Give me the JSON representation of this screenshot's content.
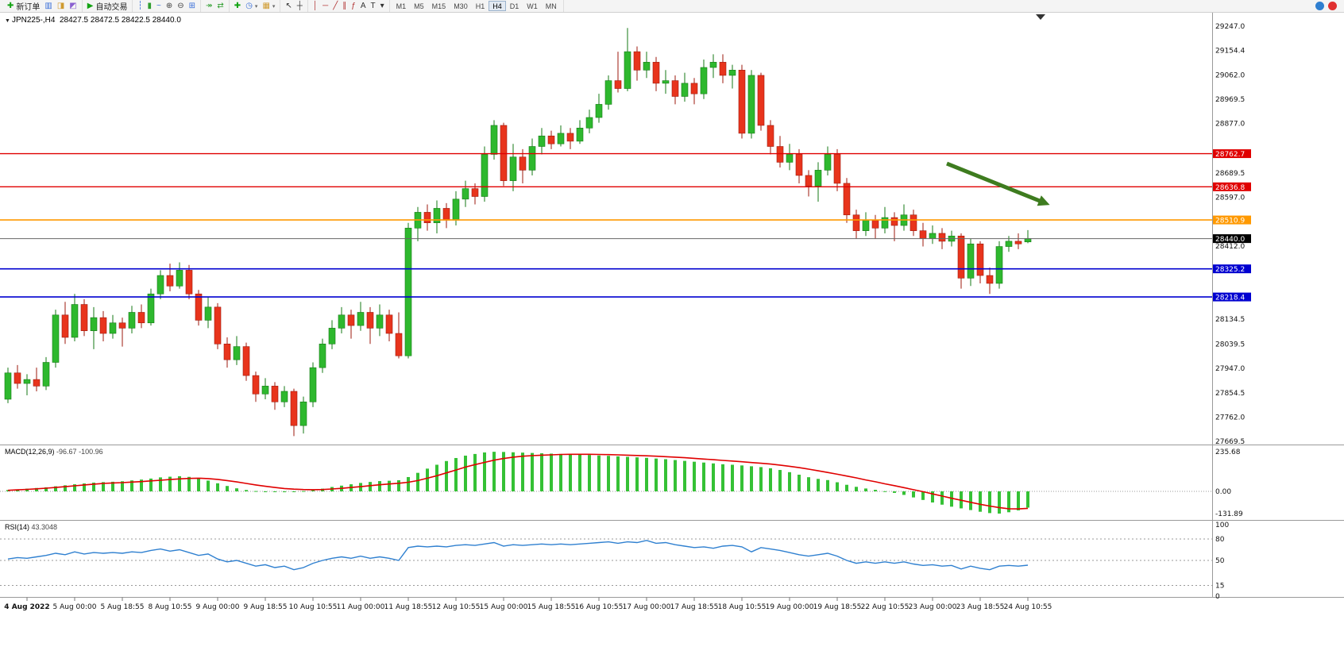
{
  "toolbar": {
    "left_groups": [
      {
        "name": "order-group",
        "items": [
          {
            "name": "new-order-button",
            "glyph": "✚",
            "glyph_color": "#12a312",
            "label": "新订单"
          },
          {
            "name": "market-depth-button",
            "glyph": "▥",
            "glyph_color": "#3a6fd8"
          },
          {
            "name": "new-chart-button",
            "glyph": "◨",
            "glyph_color": "#cf9a2f"
          },
          {
            "name": "profiles-button",
            "glyph": "◩",
            "glyph_color": "#8a5fd0"
          }
        ]
      },
      {
        "name": "algo-group",
        "items": [
          {
            "name": "algo-trading-button",
            "glyph": "▶",
            "glyph_color": "#12a312",
            "label": "自动交易"
          }
        ]
      },
      {
        "name": "chart-type-group",
        "items": [
          {
            "name": "bars-chart-button",
            "glyph": "┆",
            "glyph_color": "#3a6fd8"
          },
          {
            "name": "candles-chart-button",
            "glyph": "▮",
            "glyph_color": "#2f9e2f"
          },
          {
            "name": "line-chart-button",
            "glyph": "~",
            "glyph_color": "#3a6fd8"
          },
          {
            "name": "zoom-in-button",
            "glyph": "⊕",
            "glyph_color": "#444444"
          },
          {
            "name": "zoom-out-button",
            "glyph": "⊖",
            "glyph_color": "#444444"
          },
          {
            "name": "tile-windows-button",
            "glyph": "⊞",
            "glyph_color": "#3a6fd8"
          }
        ]
      },
      {
        "name": "scroll-group",
        "items": [
          {
            "name": "auto-scroll-button",
            "glyph": "↠",
            "glyph_color": "#2f9e2f"
          },
          {
            "name": "chart-shift-button",
            "glyph": "⇄",
            "glyph_color": "#2f9e2f"
          }
        ]
      },
      {
        "name": "insert-group",
        "items": [
          {
            "name": "indicators-button",
            "glyph": "✚",
            "glyph_color": "#12a312"
          },
          {
            "name": "periods-button",
            "glyph": "◷",
            "glyph_color": "#3a6fd8",
            "dropdown": true
          },
          {
            "name": "templates-button",
            "glyph": "▦",
            "glyph_color": "#cf9a2f",
            "dropdown": true
          }
        ]
      },
      {
        "name": "cursor-group",
        "items": [
          {
            "name": "cursor-button",
            "glyph": "↖",
            "glyph_color": "#333333"
          },
          {
            "name": "crosshair-button",
            "glyph": "┼",
            "glyph_color": "#333333"
          }
        ]
      },
      {
        "name": "objects-group",
        "items": [
          {
            "name": "vertical-line-button",
            "glyph": "│",
            "glyph_color": "#b03030"
          },
          {
            "name": "horizontal-line-button",
            "glyph": "─",
            "glyph_color": "#b03030"
          },
          {
            "name": "trendline-button",
            "glyph": "╱",
            "glyph_color": "#b03030"
          },
          {
            "name": "channel-button",
            "glyph": "∥",
            "glyph_color": "#b03030"
          },
          {
            "name": "fibonacci-button",
            "glyph": "ƒ",
            "glyph_color": "#b03030"
          },
          {
            "name": "text-button",
            "glyph": "A",
            "glyph_color": "#333333"
          },
          {
            "name": "label-button",
            "glyph": "T",
            "glyph_color": "#333333"
          },
          {
            "name": "objects-list-button",
            "glyph": "▾",
            "glyph_color": "#333333"
          }
        ]
      }
    ],
    "timeframes": [
      "M1",
      "M5",
      "M15",
      "M30",
      "H1",
      "H4",
      "D1",
      "W1",
      "MN"
    ],
    "active_timeframe": "H4",
    "right_icons": [
      {
        "name": "community-icon",
        "color": "#2f7fd0"
      },
      {
        "name": "news-icon",
        "color": "#e03030"
      }
    ]
  },
  "chart_data": {
    "type": "candlestick",
    "header": {
      "symbol_period": "JPN225-,H4",
      "ohlc": "28427.5 28472.5 28422.5 28440.0",
      "open": "28427.5",
      "high": "28472.5",
      "low": "28422.5",
      "close": "28440.0"
    },
    "colors": {
      "up": "#2eb82e",
      "up_border": "#157a15",
      "down": "#e8341c",
      "down_border": "#9e1a0e",
      "macd_bar": "#35c135",
      "macd_signal": "#e00000",
      "rsi_line": "#2f80d0",
      "grid_sep": "#9a9a9a"
    },
    "price_axis": {
      "visible_min": 27658,
      "visible_max": 29298,
      "ticks": [
        "29247.0",
        "29154.4",
        "29062.0",
        "28969.5",
        "28877.0",
        "28689.5",
        "28597.0",
        "28412.0",
        "28134.5",
        "28039.5",
        "27947.0",
        "27854.5",
        "27762.0",
        "27669.5"
      ]
    },
    "hlines": [
      {
        "price": 28762.7,
        "label": "28762.7",
        "color": "#e00000",
        "width": 1.4
      },
      {
        "price": 28636.8,
        "label": "28636.8",
        "color": "#e00000",
        "width": 1.4
      },
      {
        "price": 28510.9,
        "label": "28510.9",
        "color": "#ff9900",
        "width": 1.6
      },
      {
        "price": 28440.0,
        "label": "28440.0",
        "color": "#666666",
        "width": 1,
        "label_bg": "#000000"
      },
      {
        "price": 28325.2,
        "label": "28325.2",
        "color": "#0000d0",
        "width": 1.6
      },
      {
        "price": 28218.4,
        "label": "28218.4",
        "color": "#0000d0",
        "width": 1.6
      }
    ],
    "x_labels": [
      "4 Aug 2022",
      "5 Aug 00:00",
      "5 Aug 18:55",
      "8 Aug 10:55",
      "9 Aug 00:00",
      "9 Aug 18:55",
      "10 Aug 10:55",
      "11 Aug 00:00",
      "11 Aug 18:55",
      "12 Aug 10:55",
      "15 Aug 00:00",
      "15 Aug 18:55",
      "16 Aug 10:55",
      "17 Aug 00:00",
      "17 Aug 18:55",
      "18 Aug 10:55",
      "19 Aug 00:00",
      "19 Aug 18:55",
      "22 Aug 10:55",
      "23 Aug 00:00",
      "23 Aug 18:55",
      "24 Aug 10:55"
    ],
    "candles": [
      [
        27830,
        27950,
        27815,
        27930
      ],
      [
        27930,
        27960,
        27870,
        27890
      ],
      [
        27890,
        27925,
        27845,
        27905
      ],
      [
        27905,
        27950,
        27860,
        27880
      ],
      [
        27880,
        27990,
        27865,
        27970
      ],
      [
        27970,
        28170,
        27950,
        28150
      ],
      [
        28150,
        28200,
        28040,
        28065
      ],
      [
        28065,
        28230,
        28050,
        28190
      ],
      [
        28190,
        28210,
        28070,
        28090
      ],
      [
        28090,
        28180,
        28020,
        28140
      ],
      [
        28140,
        28165,
        28050,
        28080
      ],
      [
        28080,
        28150,
        28060,
        28120
      ],
      [
        28120,
        28140,
        28030,
        28100
      ],
      [
        28100,
        28185,
        28080,
        28160
      ],
      [
        28160,
        28190,
        28100,
        28120
      ],
      [
        28120,
        28250,
        28110,
        28230
      ],
      [
        28230,
        28320,
        28210,
        28300
      ],
      [
        28300,
        28345,
        28240,
        28260
      ],
      [
        28260,
        28350,
        28250,
        28320
      ],
      [
        28320,
        28340,
        28210,
        28230
      ],
      [
        28230,
        28245,
        28110,
        28130
      ],
      [
        28130,
        28220,
        28100,
        28180
      ],
      [
        28180,
        28195,
        28020,
        28040
      ],
      [
        28040,
        28065,
        27950,
        27980
      ],
      [
        27980,
        28070,
        27960,
        28030
      ],
      [
        28030,
        28045,
        27900,
        27920
      ],
      [
        27920,
        27935,
        27820,
        27850
      ],
      [
        27850,
        27910,
        27830,
        27880
      ],
      [
        27880,
        27895,
        27790,
        27820
      ],
      [
        27820,
        27880,
        27800,
        27860
      ],
      [
        27860,
        27870,
        27690,
        27730
      ],
      [
        27730,
        27840,
        27700,
        27820
      ],
      [
        27820,
        27970,
        27800,
        27950
      ],
      [
        27950,
        28060,
        27930,
        28040
      ],
      [
        28040,
        28130,
        28020,
        28100
      ],
      [
        28100,
        28180,
        28080,
        28150
      ],
      [
        28150,
        28170,
        28060,
        28110
      ],
      [
        28110,
        28200,
        28090,
        28160
      ],
      [
        28160,
        28180,
        28040,
        28100
      ],
      [
        28100,
        28190,
        28070,
        28150
      ],
      [
        28150,
        28170,
        28050,
        28080
      ],
      [
        28080,
        28160,
        27985,
        27995
      ],
      [
        27995,
        28500,
        27985,
        28480
      ],
      [
        28480,
        28560,
        28430,
        28540
      ],
      [
        28540,
        28570,
        28470,
        28500
      ],
      [
        28500,
        28585,
        28460,
        28555
      ],
      [
        28555,
        28575,
        28480,
        28510
      ],
      [
        28510,
        28620,
        28490,
        28590
      ],
      [
        28590,
        28660,
        28560,
        28630
      ],
      [
        28630,
        28650,
        28570,
        28600
      ],
      [
        28600,
        28790,
        28580,
        28760
      ],
      [
        28760,
        28890,
        28740,
        28870
      ],
      [
        28870,
        28880,
        28640,
        28660
      ],
      [
        28660,
        28800,
        28620,
        28750
      ],
      [
        28750,
        28780,
        28650,
        28700
      ],
      [
        28700,
        28820,
        28680,
        28790
      ],
      [
        28790,
        28860,
        28760,
        28830
      ],
      [
        28830,
        28850,
        28780,
        28800
      ],
      [
        28800,
        28870,
        28790,
        28840
      ],
      [
        28840,
        28860,
        28780,
        28810
      ],
      [
        28810,
        28890,
        28800,
        28860
      ],
      [
        28860,
        28930,
        28840,
        28900
      ],
      [
        28900,
        28990,
        28880,
        28950
      ],
      [
        28950,
        29060,
        28930,
        29040
      ],
      [
        29040,
        29150,
        28995,
        29010
      ],
      [
        29010,
        29240,
        29000,
        29150
      ],
      [
        29150,
        29170,
        29040,
        29080
      ],
      [
        29080,
        29150,
        29050,
        29110
      ],
      [
        29110,
        29130,
        29000,
        29030
      ],
      [
        29030,
        29080,
        28990,
        29040
      ],
      [
        29040,
        29060,
        28950,
        28980
      ],
      [
        28980,
        29070,
        28960,
        29030
      ],
      [
        29030,
        29050,
        28950,
        28990
      ],
      [
        28990,
        29120,
        28970,
        29090
      ],
      [
        29090,
        29140,
        29050,
        29110
      ],
      [
        29110,
        29140,
        29030,
        29060
      ],
      [
        29060,
        29100,
        29010,
        29080
      ],
      [
        29080,
        29100,
        28820,
        28840
      ],
      [
        28840,
        29080,
        28820,
        29060
      ],
      [
        29060,
        29070,
        28850,
        28870
      ],
      [
        28870,
        28890,
        28760,
        28790
      ],
      [
        28790,
        28830,
        28710,
        28730
      ],
      [
        28730,
        28800,
        28700,
        28760
      ],
      [
        28760,
        28780,
        28650,
        28680
      ],
      [
        28680,
        28700,
        28600,
        28640
      ],
      [
        28640,
        28730,
        28580,
        28700
      ],
      [
        28700,
        28790,
        28680,
        28760
      ],
      [
        28760,
        28780,
        28620,
        28650
      ],
      [
        28650,
        28670,
        28500,
        28530
      ],
      [
        28530,
        28550,
        28440,
        28470
      ],
      [
        28470,
        28540,
        28450,
        28510
      ],
      [
        28510,
        28530,
        28440,
        28480
      ],
      [
        28480,
        28560,
        28460,
        28520
      ],
      [
        28520,
        28540,
        28430,
        28490
      ],
      [
        28490,
        28570,
        28470,
        28530
      ],
      [
        28530,
        28550,
        28450,
        28470
      ],
      [
        28470,
        28500,
        28410,
        28440
      ],
      [
        28440,
        28490,
        28420,
        28460
      ],
      [
        28460,
        28480,
        28400,
        28430
      ],
      [
        28430,
        28470,
        28410,
        28450
      ],
      [
        28450,
        28460,
        28250,
        28290
      ],
      [
        28290,
        28440,
        28260,
        28420
      ],
      [
        28420,
        28430,
        28270,
        28300
      ],
      [
        28300,
        28330,
        28230,
        28270
      ],
      [
        28270,
        28430,
        28250,
        28410
      ],
      [
        28410,
        28450,
        28390,
        28430
      ],
      [
        28430,
        28460,
        28400,
        28420
      ],
      [
        28427.5,
        28472.5,
        28422.5,
        28440
      ]
    ],
    "macd": {
      "title": "MACD(12,26,9)",
      "values_text": "-96.67 -100.96",
      "axis_ticks": [
        "235.68",
        "0.00",
        "-131.89"
      ],
      "axis_values": [
        235.68,
        0,
        -131.89
      ],
      "histogram": [
        8,
        12,
        16,
        20,
        24,
        30,
        36,
        42,
        47,
        52,
        55,
        57,
        60,
        65,
        70,
        76,
        83,
        87,
        90,
        86,
        78,
        64,
        48,
        32,
        18,
        8,
        2,
        -2,
        -4,
        -5,
        -3,
        2,
        8,
        16,
        26,
        34,
        42,
        50,
        56,
        61,
        63,
        66,
        85,
        110,
        135,
        158,
        180,
        198,
        212,
        222,
        231,
        235,
        234,
        232,
        230,
        228,
        226,
        224,
        222,
        220,
        218,
        216,
        213,
        211,
        208,
        205,
        202,
        199,
        195,
        191,
        186,
        181,
        176,
        171,
        166,
        161,
        158,
        154,
        149,
        144,
        137,
        127,
        114,
        99,
        84,
        74,
        67,
        54,
        39,
        27,
        17,
        9,
        1,
        -9,
        -21,
        -36,
        -51,
        -66,
        -79,
        -91,
        -101,
        -111,
        -121,
        -129,
        -131.89,
        -124,
        -113,
        -96.67
      ],
      "signal": [
        6,
        9,
        12,
        15,
        19,
        23,
        28,
        33,
        38,
        43,
        47,
        50,
        52,
        55,
        58,
        62,
        66,
        70,
        74,
        77,
        78,
        76,
        71,
        64,
        56,
        47,
        38,
        30,
        23,
        17,
        13,
        11,
        10,
        11,
        14,
        18,
        23,
        28,
        34,
        39,
        44,
        48,
        54,
        64,
        78,
        93,
        110,
        127,
        144,
        159,
        172,
        185,
        195,
        203,
        209,
        212,
        215,
        217,
        219,
        220,
        220,
        220,
        219,
        218,
        217,
        215,
        213,
        211,
        209,
        206,
        203,
        200,
        196,
        192,
        188,
        184,
        180,
        176,
        171,
        167,
        162,
        156,
        149,
        141,
        132,
        122,
        112,
        102,
        91,
        80,
        68,
        57,
        45,
        34,
        22,
        10,
        -2,
        -15,
        -28,
        -41,
        -53,
        -65,
        -77,
        -87,
        -96,
        -103,
        -104,
        -100.96
      ]
    },
    "rsi": {
      "title": "RSI(14)",
      "value_text": "43.3048",
      "axis_ticks": [
        "100",
        "80",
        "50",
        "15",
        "0"
      ],
      "axis_values": [
        100,
        80,
        50,
        15,
        0
      ],
      "levels": [
        80,
        50,
        15
      ],
      "values": [
        52,
        54,
        53,
        55,
        57,
        60,
        58,
        62,
        59,
        61,
        60,
        61,
        60,
        62,
        61,
        64,
        66,
        63,
        65,
        61,
        57,
        59,
        52,
        48,
        50,
        46,
        42,
        44,
        40,
        42,
        37,
        40,
        46,
        50,
        53,
        55,
        53,
        56,
        53,
        55,
        53,
        50,
        68,
        70,
        69,
        70,
        69,
        71,
        72,
        71,
        73,
        75,
        70,
        72,
        71,
        72,
        73,
        72,
        73,
        72,
        73,
        74,
        75,
        76,
        74,
        76,
        75,
        78,
        74,
        75,
        72,
        70,
        68,
        69,
        67,
        70,
        71,
        69,
        62,
        68,
        66,
        64,
        61,
        58,
        56,
        58,
        60,
        56,
        50,
        46,
        48,
        46,
        48,
        46,
        48,
        45,
        43,
        44,
        42,
        43,
        38,
        42,
        39,
        37,
        42,
        43,
        42,
        43.3
      ]
    },
    "arrow": {
      "from": {
        "candle": 98.5,
        "price": 28725
      },
      "to": {
        "candle": 109.3,
        "price": 28568
      },
      "color": "#3e7c1f"
    }
  }
}
